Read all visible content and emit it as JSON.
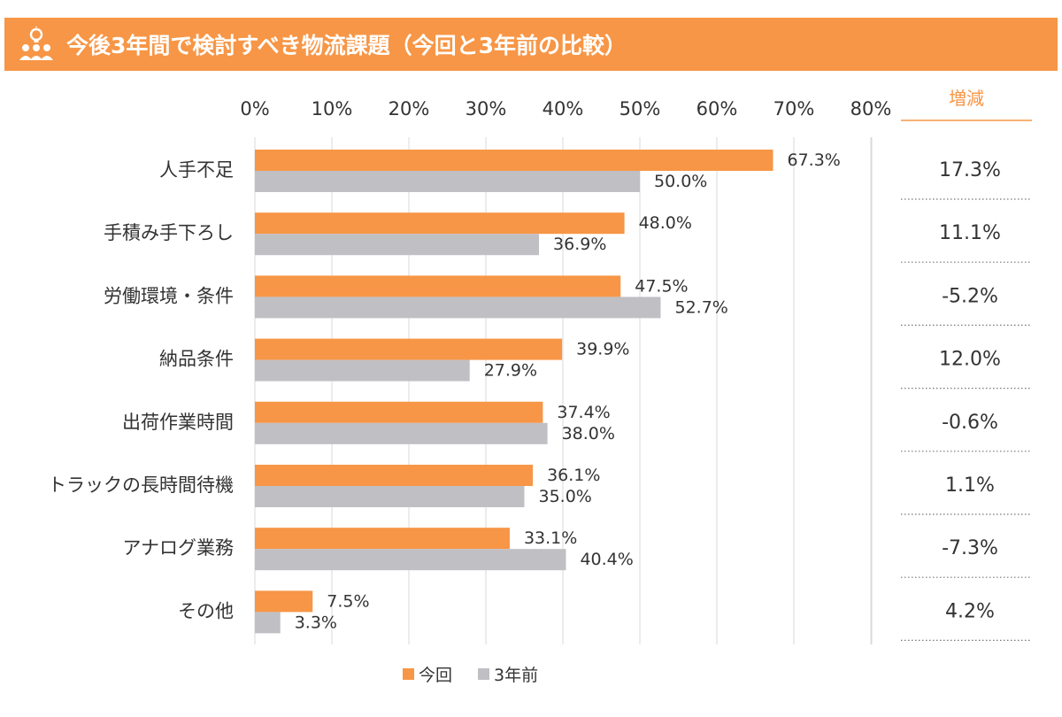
{
  "title": "今後3年間で検討すべき物流課題（今回と3年前の比較）",
  "icon": "people-idea-icon",
  "colors": {
    "accent": "#f79646",
    "current": "#f79646",
    "previous": "#c0bfc4",
    "grid": "#d9d9d9"
  },
  "chart_data": {
    "type": "bar",
    "orientation": "horizontal",
    "categories": [
      "人手不足",
      "手積み手下ろし",
      "労働環境・条件",
      "納品条件",
      "出荷作業時間",
      "トラックの長時間待機",
      "アナログ業務",
      "その他"
    ],
    "series": [
      {
        "name": "今回",
        "values": [
          67.3,
          48.0,
          47.5,
          39.9,
          37.4,
          36.1,
          33.1,
          7.5
        ]
      },
      {
        "name": "3年前",
        "values": [
          50.0,
          36.9,
          52.7,
          27.9,
          38.0,
          35.0,
          40.4,
          3.3
        ]
      }
    ],
    "value_labels": {
      "今回": [
        "67.3%",
        "48.0%",
        "47.5%",
        "39.9%",
        "37.4%",
        "36.1%",
        "33.1%",
        "7.5%"
      ],
      "3年前": [
        "50.0%",
        "36.9%",
        "52.7%",
        "27.9%",
        "38.0%",
        "35.0%",
        "40.4%",
        "3.3%"
      ]
    },
    "xlim": [
      0,
      80
    ],
    "xticks": [
      "0%",
      "10%",
      "20%",
      "30%",
      "40%",
      "50%",
      "60%",
      "70%",
      "80%"
    ],
    "xaxis_position": "top",
    "grid": true,
    "legend": "bottom",
    "legend_items": [
      "今回",
      "3年前"
    ],
    "delta_header": "増減",
    "deltas": [
      "17.3%",
      "11.1%",
      "-5.2%",
      "12.0%",
      "-0.6%",
      "1.1%",
      "-7.3%",
      "4.2%"
    ]
  }
}
